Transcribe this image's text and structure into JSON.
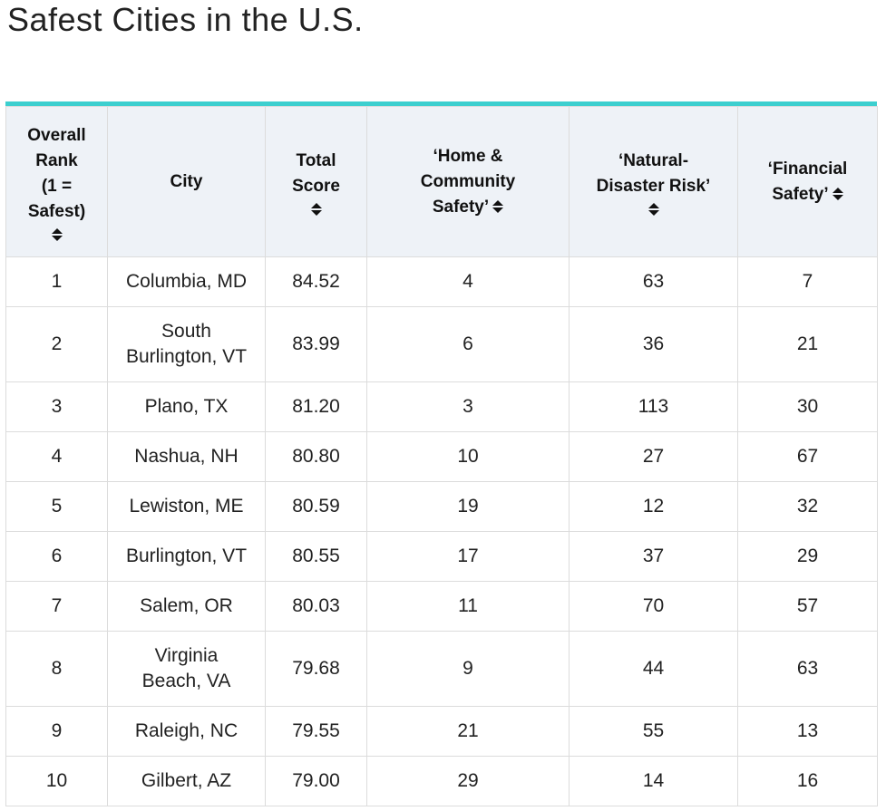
{
  "page": {
    "title": "Safest Cities in the U.S."
  },
  "colors": {
    "accent_bar": "#3ccfcf",
    "header_bg": "#eef2f7",
    "border": "#dcdcdc"
  },
  "table": {
    "headers": [
      {
        "label_lines": [
          "Overall",
          "Rank",
          "(1 =",
          "Safest)"
        ],
        "sort_icon": "sort-up-down-icon"
      },
      {
        "label_lines": [
          "City"
        ],
        "sort_icon": ""
      },
      {
        "label_lines": [
          "Total",
          "Score"
        ],
        "sort_icon": "sort-up-down-icon"
      },
      {
        "label_lines": [
          "‘Home &",
          "Community",
          "Safety’"
        ],
        "sort_icon": "sort-up-down-icon"
      },
      {
        "label_lines": [
          "‘Natural-",
          "Disaster Risk’"
        ],
        "sort_icon": "sort-up-down-icon"
      },
      {
        "label_lines": [
          "‘Financial",
          "Safety’"
        ],
        "sort_icon": "sort-up-down-icon"
      }
    ],
    "rows": [
      {
        "rank": "1",
        "city_lines": [
          "Columbia, MD"
        ],
        "total": "84.52",
        "home": "4",
        "disaster": "63",
        "financial": "7"
      },
      {
        "rank": "2",
        "city_lines": [
          "South",
          "Burlington, VT"
        ],
        "total": "83.99",
        "home": "6",
        "disaster": "36",
        "financial": "21"
      },
      {
        "rank": "3",
        "city_lines": [
          "Plano, TX"
        ],
        "total": "81.20",
        "home": "3",
        "disaster": "113",
        "financial": "30"
      },
      {
        "rank": "4",
        "city_lines": [
          "Nashua, NH"
        ],
        "total": "80.80",
        "home": "10",
        "disaster": "27",
        "financial": "67"
      },
      {
        "rank": "5",
        "city_lines": [
          "Lewiston, ME"
        ],
        "total": "80.59",
        "home": "19",
        "disaster": "12",
        "financial": "32"
      },
      {
        "rank": "6",
        "city_lines": [
          "Burlington, VT"
        ],
        "total": "80.55",
        "home": "17",
        "disaster": "37",
        "financial": "29"
      },
      {
        "rank": "7",
        "city_lines": [
          "Salem, OR"
        ],
        "total": "80.03",
        "home": "11",
        "disaster": "70",
        "financial": "57"
      },
      {
        "rank": "8",
        "city_lines": [
          "Virginia",
          "Beach, VA"
        ],
        "total": "79.68",
        "home": "9",
        "disaster": "44",
        "financial": "63"
      },
      {
        "rank": "9",
        "city_lines": [
          "Raleigh, NC"
        ],
        "total": "79.55",
        "home": "21",
        "disaster": "55",
        "financial": "13"
      },
      {
        "rank": "10",
        "city_lines": [
          "Gilbert, AZ"
        ],
        "total": "79.00",
        "home": "29",
        "disaster": "14",
        "financial": "16"
      }
    ]
  }
}
